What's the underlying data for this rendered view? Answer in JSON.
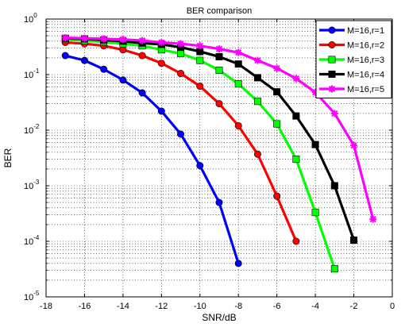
{
  "chart_data": {
    "type": "line",
    "title": "BER comparison",
    "xlabel": "SNR/dB",
    "ylabel": "BER",
    "xlim": [
      -18,
      0
    ],
    "ylim": [
      1e-05,
      1
    ],
    "yscale": "log",
    "grid": true,
    "legend_position": "top-right",
    "x_ticks": [
      {
        "value": -18,
        "label": "-18"
      },
      {
        "value": -16,
        "label": "-16"
      },
      {
        "value": -14,
        "label": "-14"
      },
      {
        "value": -12,
        "label": "-12"
      },
      {
        "value": -10,
        "label": "-10"
      },
      {
        "value": -8,
        "label": "-8"
      },
      {
        "value": -6,
        "label": "-6"
      },
      {
        "value": -4,
        "label": "-4"
      },
      {
        "value": -2,
        "label": "-2"
      },
      {
        "value": 0,
        "label": "0"
      }
    ],
    "y_ticks": [
      {
        "value": 1,
        "base": "10",
        "exp": "0"
      },
      {
        "value": 0.1,
        "base": "10",
        "exp": "-1"
      },
      {
        "value": 0.01,
        "base": "10",
        "exp": "-2"
      },
      {
        "value": 0.001,
        "base": "10",
        "exp": "-3"
      },
      {
        "value": 0.0001,
        "base": "10",
        "exp": "-4"
      },
      {
        "value": 1e-05,
        "base": "10",
        "exp": "-5"
      }
    ],
    "series": [
      {
        "name": "M=16,r=1",
        "color": "#0000ff",
        "marker": "circle",
        "x": [
          -17,
          -16,
          -15,
          -14,
          -13,
          -12,
          -11,
          -10,
          -9,
          -8
        ],
        "y": [
          0.22,
          0.18,
          0.125,
          0.08,
          0.047,
          0.022,
          0.0085,
          0.0023,
          0.0005,
          4e-05
        ]
      },
      {
        "name": "M=16,r=2",
        "color": "#ff0000",
        "marker": "circle",
        "x": [
          -17,
          -16,
          -15,
          -14,
          -13,
          -12,
          -11,
          -10,
          -9,
          -8,
          -7,
          -6,
          -5
        ],
        "y": [
          0.38,
          0.36,
          0.33,
          0.28,
          0.22,
          0.16,
          0.105,
          0.062,
          0.03,
          0.012,
          0.0037,
          0.00065,
          0.0001
        ]
      },
      {
        "name": "M=16,r=3",
        "color": "#00ff00",
        "marker": "square",
        "x": [
          -17,
          -16,
          -15,
          -14,
          -13,
          -12,
          -11,
          -10,
          -9,
          -8,
          -7,
          -6,
          -5,
          -4,
          -3
        ],
        "y": [
          0.43,
          0.41,
          0.39,
          0.36,
          0.33,
          0.28,
          0.24,
          0.18,
          0.12,
          0.068,
          0.033,
          0.013,
          0.003,
          0.00033,
          3.2e-05
        ]
      },
      {
        "name": "M=16,r=4",
        "color": "#000000",
        "marker": "square",
        "x": [
          -17,
          -16,
          -15,
          -14,
          -13,
          -12,
          -11,
          -10,
          -9,
          -8,
          -7,
          -6,
          -5,
          -4,
          -3,
          -2
        ],
        "y": [
          0.45,
          0.44,
          0.42,
          0.4,
          0.37,
          0.35,
          0.31,
          0.26,
          0.21,
          0.155,
          0.088,
          0.049,
          0.018,
          0.0055,
          0.001,
          0.000105
        ]
      },
      {
        "name": "M=16,r=5",
        "color": "#ff00ff",
        "marker": "star",
        "x": [
          -17,
          -16,
          -15,
          -14,
          -13,
          -12,
          -11,
          -10,
          -9,
          -8,
          -7,
          -6,
          -5,
          -4,
          -3,
          -2,
          -1
        ],
        "y": [
          0.46,
          0.45,
          0.44,
          0.43,
          0.41,
          0.38,
          0.36,
          0.33,
          0.29,
          0.25,
          0.18,
          0.13,
          0.085,
          0.048,
          0.02,
          0.0053,
          0.00025
        ]
      }
    ]
  }
}
